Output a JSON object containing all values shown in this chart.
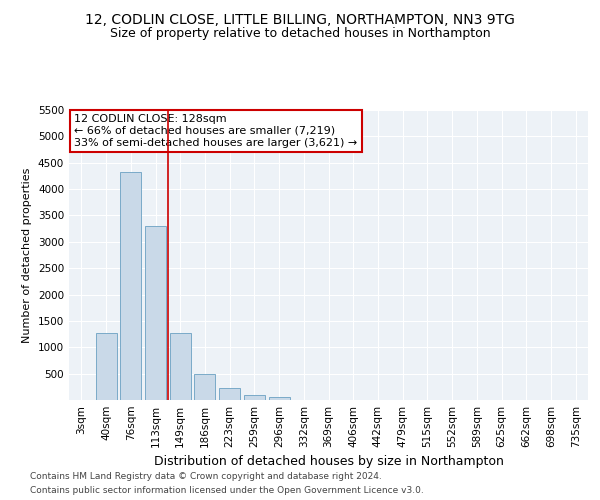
{
  "title_line1": "12, CODLIN CLOSE, LITTLE BILLING, NORTHAMPTON, NN3 9TG",
  "title_line2": "Size of property relative to detached houses in Northampton",
  "xlabel": "Distribution of detached houses by size in Northampton",
  "ylabel": "Number of detached properties",
  "footer_line1": "Contains HM Land Registry data © Crown copyright and database right 2024.",
  "footer_line2": "Contains public sector information licensed under the Open Government Licence v3.0.",
  "annotation_line1": "12 CODLIN CLOSE: 128sqm",
  "annotation_line2": "← 66% of detached houses are smaller (7,219)",
  "annotation_line3": "33% of semi-detached houses are larger (3,621) →",
  "bar_labels": [
    "3sqm",
    "40sqm",
    "76sqm",
    "113sqm",
    "149sqm",
    "186sqm",
    "223sqm",
    "259sqm",
    "296sqm",
    "332sqm",
    "369sqm",
    "406sqm",
    "442sqm",
    "479sqm",
    "515sqm",
    "552sqm",
    "589sqm",
    "625sqm",
    "662sqm",
    "698sqm",
    "735sqm"
  ],
  "bar_values": [
    0,
    1270,
    4330,
    3300,
    1280,
    490,
    220,
    90,
    60,
    0,
    0,
    0,
    0,
    0,
    0,
    0,
    0,
    0,
    0,
    0,
    0
  ],
  "bar_color": "#c9d9e8",
  "bar_edge_color": "#7aaac8",
  "vline_x": 3.5,
  "vline_color": "#cc0000",
  "ylim": [
    0,
    5500
  ],
  "yticks": [
    0,
    500,
    1000,
    1500,
    2000,
    2500,
    3000,
    3500,
    4000,
    4500,
    5000,
    5500
  ],
  "plot_bg_color": "#edf2f7",
  "annotation_box_facecolor": "#ffffff",
  "annotation_box_edge_color": "#cc0000",
  "grid_color": "#ffffff",
  "title_fontsize": 10,
  "subtitle_fontsize": 9,
  "annotation_fontsize": 8,
  "ylabel_fontsize": 8,
  "xlabel_fontsize": 9,
  "tick_fontsize": 7.5,
  "footer_fontsize": 6.5
}
